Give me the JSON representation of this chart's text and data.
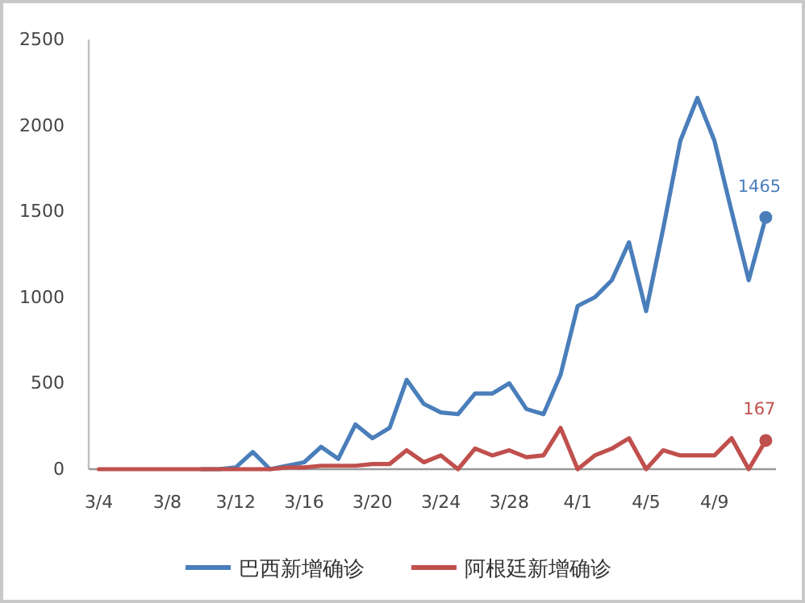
{
  "chart_data": {
    "type": "line",
    "categories": [
      "3/4",
      null,
      null,
      null,
      "3/8",
      null,
      null,
      null,
      "3/12",
      null,
      null,
      null,
      "3/16",
      null,
      null,
      null,
      "3/20",
      null,
      null,
      null,
      "3/24",
      null,
      null,
      null,
      "3/28",
      null,
      null,
      null,
      "4/1",
      null,
      null,
      null,
      "4/5",
      null,
      null,
      null,
      "4/9",
      null,
      null,
      null
    ],
    "series": [
      {
        "name": "巴西新增确诊",
        "color": "#4a7ebb",
        "values": [
          null,
          null,
          null,
          null,
          null,
          null,
          0,
          0,
          10,
          100,
          0,
          20,
          40,
          130,
          60,
          260,
          180,
          240,
          520,
          380,
          330,
          320,
          440,
          440,
          500,
          350,
          320,
          550,
          950,
          1000,
          1100,
          1320,
          920,
          1400,
          1910,
          2160,
          1910,
          1500,
          1100,
          1465
        ],
        "value_labels": [
          null,
          null,
          null,
          null,
          null,
          null,
          null,
          null,
          null,
          null,
          null,
          null,
          null,
          null,
          null,
          null,
          null,
          null,
          null,
          null,
          null,
          null,
          null,
          null,
          null,
          null,
          null,
          null,
          null,
          null,
          null,
          null,
          null,
          null,
          null,
          null,
          null,
          null,
          null,
          "1465"
        ]
      },
      {
        "name": "阿根廷新增确诊",
        "color": "#c0504d",
        "values": [
          0,
          0,
          0,
          0,
          0,
          0,
          0,
          0,
          0,
          0,
          0,
          10,
          10,
          20,
          20,
          20,
          30,
          30,
          110,
          40,
          80,
          0,
          120,
          80,
          110,
          70,
          80,
          240,
          0,
          80,
          120,
          180,
          0,
          110,
          80,
          80,
          80,
          180,
          0,
          167
        ],
        "value_labels": [
          null,
          null,
          null,
          null,
          null,
          null,
          null,
          null,
          null,
          null,
          null,
          null,
          null,
          null,
          null,
          null,
          null,
          null,
          null,
          null,
          null,
          null,
          null,
          null,
          null,
          null,
          null,
          null,
          null,
          null,
          null,
          null,
          null,
          null,
          null,
          null,
          null,
          null,
          null,
          "167"
        ]
      }
    ],
    "ylim": [
      0,
      2500
    ],
    "yticks": [
      0,
      500,
      1000,
      1500,
      2000,
      2500
    ],
    "legend": "bottom"
  }
}
